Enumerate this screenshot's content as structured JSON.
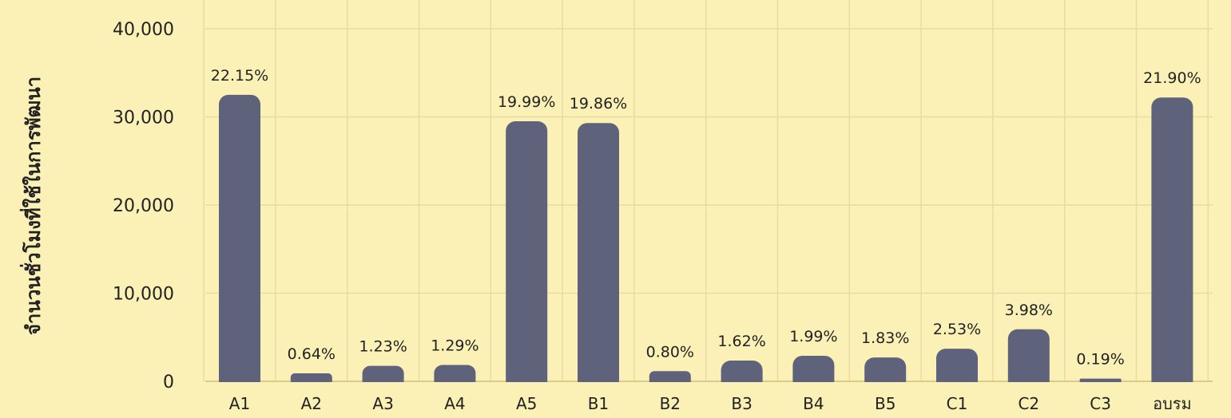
{
  "chart_data": {
    "type": "bar",
    "title": "",
    "xlabel": "",
    "ylabel": "จำนวนชั่วโมงที่ใช้ในการพัฒนา",
    "ylim": [
      0,
      40000
    ],
    "yticks": [
      0,
      10000,
      20000,
      30000,
      40000
    ],
    "ytick_labels": [
      "0",
      "10,000",
      "20,000",
      "30,000",
      "40,000"
    ],
    "grid": true,
    "legend": "none",
    "categories": [
      "A1",
      "A2",
      "A3",
      "A4",
      "A5",
      "B1",
      "B2",
      "B3",
      "B4",
      "B5",
      "C1",
      "C2",
      "C3",
      "อบรม"
    ],
    "values": [
      32500,
      900,
      1750,
      1850,
      29500,
      29300,
      1150,
      2350,
      2900,
      2700,
      3700,
      5900,
      300,
      32200
    ],
    "data_labels": [
      "22.15%",
      "0.64%",
      "1.23%",
      "1.29%",
      "19.99%",
      "19.86%",
      "0.80%",
      "1.62%",
      "1.99%",
      "1.83%",
      "2.53%",
      "3.98%",
      "0.19%",
      "21.90%"
    ],
    "colors": {
      "background": "#fbf1b6",
      "bar": "#5e627b",
      "grid": "#e6dca0"
    }
  }
}
